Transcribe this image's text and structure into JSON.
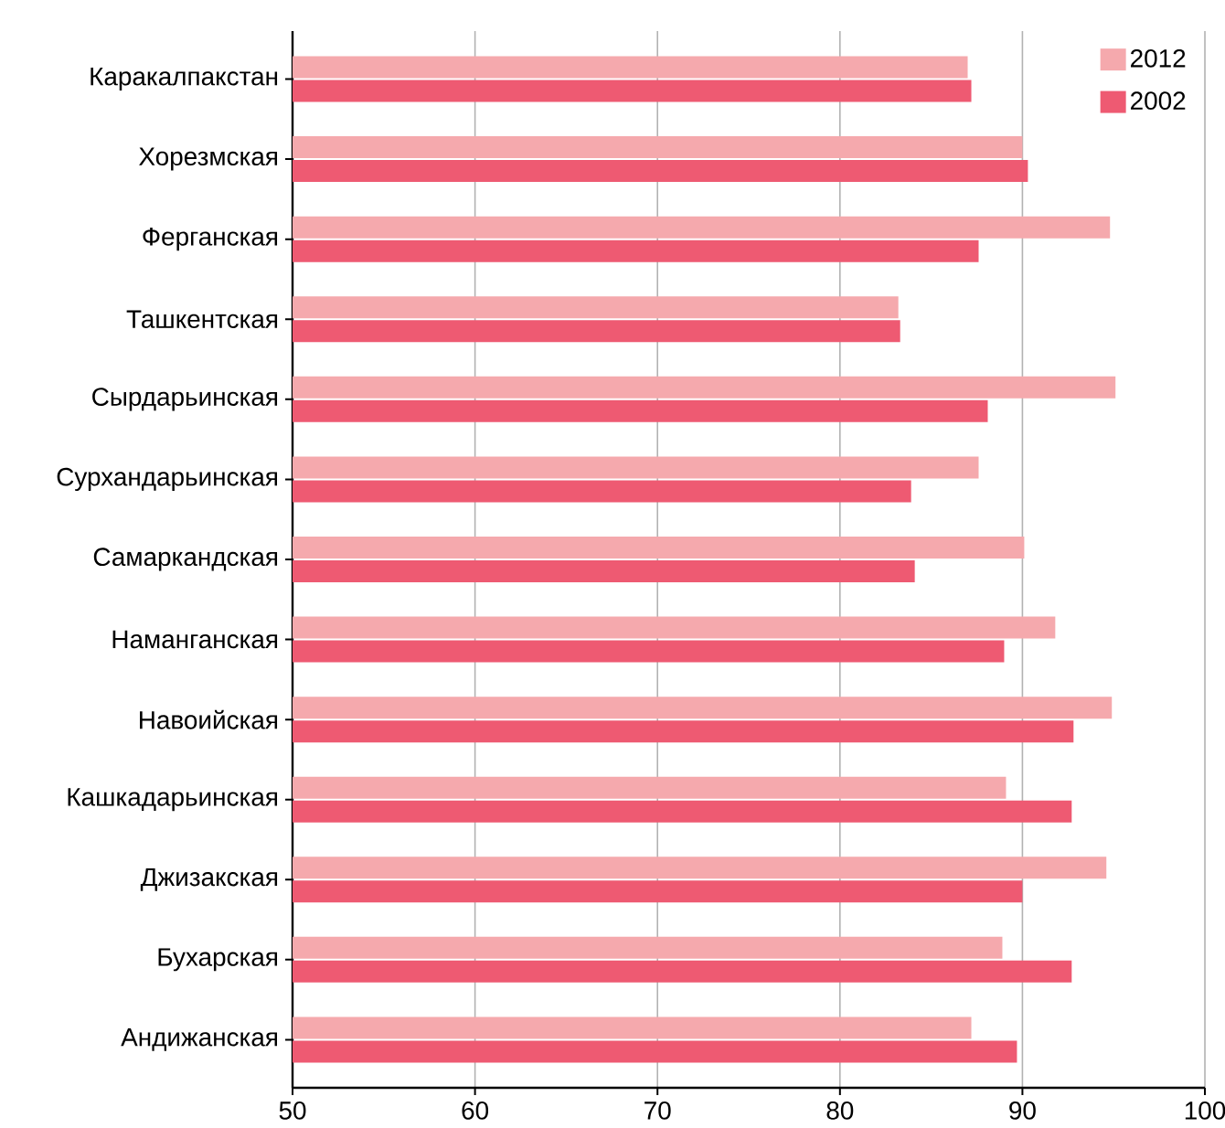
{
  "chart_data": {
    "type": "bar",
    "orientation": "horizontal",
    "categories": [
      "Каракалпакстан",
      "Хорезмская",
      "Ферганская",
      "Ташкентская",
      "Сырдарьинская",
      "Сурхандарьинская",
      "Самаркандская",
      "Наманганская",
      "Навоийская",
      "Кашкадарьинская",
      "Джизакская",
      "Бухарская",
      "Андижанская"
    ],
    "series": [
      {
        "name": "2012",
        "color": "#f5a9ad",
        "values": [
          87.0,
          90.0,
          94.8,
          83.2,
          95.1,
          87.6,
          90.1,
          91.8,
          94.9,
          89.1,
          94.6,
          88.9,
          87.2
        ]
      },
      {
        "name": "2002",
        "color": "#ee5a72",
        "values": [
          87.2,
          90.3,
          87.6,
          83.3,
          88.1,
          83.9,
          84.1,
          89.0,
          92.8,
          92.7,
          90.0,
          92.7,
          89.7
        ]
      }
    ],
    "xlim": [
      50,
      100
    ],
    "xticks": [
      50,
      60,
      70,
      80,
      90,
      100
    ],
    "grid": "x",
    "legend": "top right"
  }
}
